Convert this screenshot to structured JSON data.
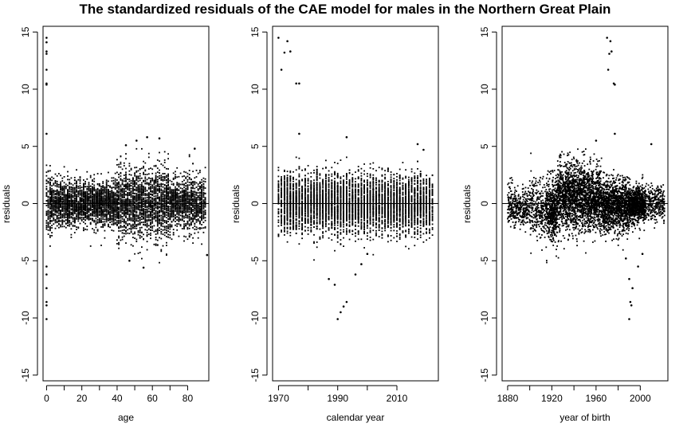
{
  "chart_data": {
    "title": "The standardized residuals of the CAE model for males in the Northern Great Plain",
    "panels": [
      {
        "id": "age",
        "type": "scatter",
        "xlabel": "age",
        "ylabel": "residuals",
        "xlim": [
          -2,
          92
        ],
        "ylim": [
          -15.5,
          15.5
        ],
        "xticks": [
          0,
          20,
          40,
          60,
          80
        ],
        "yticks": [
          -15,
          -10,
          -5,
          0,
          5,
          10,
          15
        ],
        "hline": 0,
        "x_range": [
          0,
          90
        ],
        "outliers": [
          {
            "x": 0,
            "y": 14.5
          },
          {
            "x": 0,
            "y": 14.1
          },
          {
            "x": 0,
            "y": 13.3
          },
          {
            "x": 0,
            "y": 13.1
          },
          {
            "x": 0,
            "y": 11.7
          },
          {
            "x": 0,
            "y": 10.5
          },
          {
            "x": 0,
            "y": 10.4
          },
          {
            "x": 0,
            "y": 6.1
          },
          {
            "x": 0,
            "y": -5.5
          },
          {
            "x": 0,
            "y": -6.2
          },
          {
            "x": 0,
            "y": -7.4
          },
          {
            "x": 0,
            "y": -8.6
          },
          {
            "x": 0,
            "y": -8.9
          },
          {
            "x": 0,
            "y": -10.1
          },
          {
            "x": 45,
            "y": 5.1
          },
          {
            "x": 51,
            "y": 5.5
          },
          {
            "x": 57,
            "y": 5.8
          },
          {
            "x": 64,
            "y": 5.7
          },
          {
            "x": 84,
            "y": 4.8
          },
          {
            "x": 91,
            "y": -4.5
          },
          {
            "x": 55,
            "y": -5.6
          },
          {
            "x": 47,
            "y": -5.0
          }
        ]
      },
      {
        "id": "calendar-year",
        "type": "scatter",
        "xlabel": "calendar year",
        "ylabel": "residuals",
        "xlim": [
          1968,
          2024
        ],
        "ylim": [
          -15.5,
          15.5
        ],
        "xticks": [
          1970,
          1990,
          2010
        ],
        "yticks": [
          -15,
          -10,
          -5,
          0,
          5,
          10,
          15
        ],
        "hline": 0,
        "x_range": [
          1970,
          2022
        ],
        "outliers": [
          {
            "x": 1970,
            "y": 14.5
          },
          {
            "x": 1973,
            "y": 14.2
          },
          {
            "x": 1974,
            "y": 13.3
          },
          {
            "x": 1972,
            "y": 13.2
          },
          {
            "x": 1971,
            "y": 11.7
          },
          {
            "x": 1976,
            "y": 10.5
          },
          {
            "x": 1977,
            "y": 10.5
          },
          {
            "x": 1977,
            "y": 6.1
          },
          {
            "x": 1987,
            "y": -6.6
          },
          {
            "x": 1989,
            "y": -7.1
          },
          {
            "x": 1991,
            "y": -9.5
          },
          {
            "x": 1992,
            "y": -9.0
          },
          {
            "x": 1993,
            "y": -8.6
          },
          {
            "x": 1990,
            "y": -10.1
          },
          {
            "x": 1996,
            "y": -6.2
          },
          {
            "x": 1998,
            "y": -5.3
          },
          {
            "x": 2000,
            "y": -4.4
          },
          {
            "x": 1993,
            "y": 5.8
          },
          {
            "x": 2017,
            "y": 5.2
          },
          {
            "x": 2019,
            "y": 4.7
          }
        ]
      },
      {
        "id": "year-of-birth",
        "type": "scatter",
        "xlabel": "year of birth",
        "ylabel": "residuals",
        "xlim": [
          1875,
          2025
        ],
        "ylim": [
          -15.5,
          15.5
        ],
        "xticks": [
          1880,
          1920,
          1960,
          2000
        ],
        "yticks": [
          -15,
          -10,
          -5,
          0,
          5,
          10,
          15
        ],
        "hline": 0,
        "x_range": [
          1880,
          2022
        ],
        "outliers": [
          {
            "x": 1970,
            "y": 14.5
          },
          {
            "x": 1973,
            "y": 14.2
          },
          {
            "x": 1974,
            "y": 13.3
          },
          {
            "x": 1972,
            "y": 13.1
          },
          {
            "x": 1971,
            "y": 11.7
          },
          {
            "x": 1976,
            "y": 10.5
          },
          {
            "x": 1977,
            "y": 10.4
          },
          {
            "x": 1977,
            "y": 6.1
          },
          {
            "x": 1987,
            "y": -4.8
          },
          {
            "x": 1990,
            "y": -6.6
          },
          {
            "x": 1993,
            "y": -7.4
          },
          {
            "x": 1991,
            "y": -8.6
          },
          {
            "x": 1992,
            "y": -8.9
          },
          {
            "x": 1990,
            "y": -10.1
          },
          {
            "x": 1998,
            "y": -5.5
          },
          {
            "x": 2002,
            "y": -4.4
          },
          {
            "x": 2010,
            "y": 5.2
          },
          {
            "x": 1960,
            "y": 5.5
          }
        ]
      }
    ]
  }
}
